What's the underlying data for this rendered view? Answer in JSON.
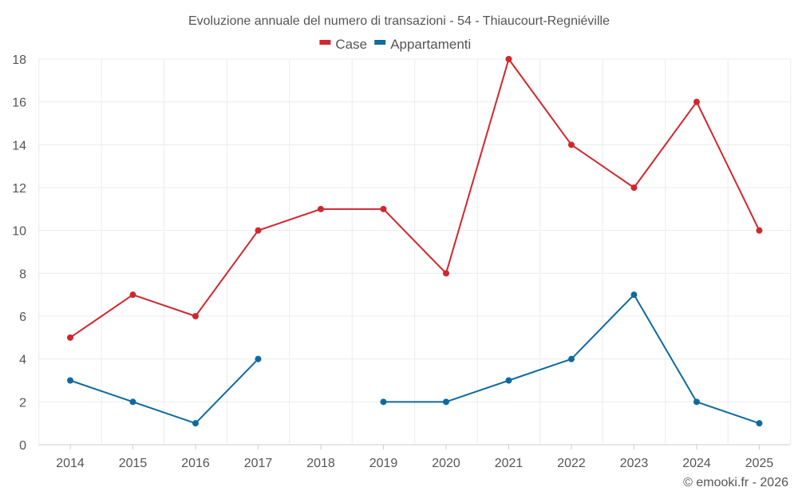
{
  "chart_data": {
    "type": "line",
    "title": "Evoluzione annuale del numero di transazioni - 54 - Thiaucourt-Regniéville",
    "xlabel": "",
    "ylabel": "",
    "categories": [
      "2014",
      "2015",
      "2016",
      "2017",
      "2018",
      "2019",
      "2020",
      "2021",
      "2022",
      "2023",
      "2024",
      "2025"
    ],
    "y_ticks": [
      "0",
      "2",
      "4",
      "6",
      "8",
      "10",
      "12",
      "14",
      "16",
      "18"
    ],
    "ylim": [
      0,
      18
    ],
    "grid": true,
    "legend_position": "top-center",
    "series": [
      {
        "name": "Case",
        "color": "#d0272d",
        "values": [
          5,
          7,
          6,
          10,
          11,
          11,
          8,
          18,
          14,
          12,
          16,
          10
        ]
      },
      {
        "name": "Appartamenti",
        "color": "#0e6a9e",
        "values": [
          3,
          2,
          1,
          4,
          null,
          2,
          2,
          3,
          4,
          7,
          2,
          1
        ]
      }
    ]
  },
  "credit": "© emooki.fr - 2026",
  "colors": {
    "grid": "#ececec",
    "axis": "#cccccc",
    "text": "#555555",
    "background": "#ffffff"
  }
}
